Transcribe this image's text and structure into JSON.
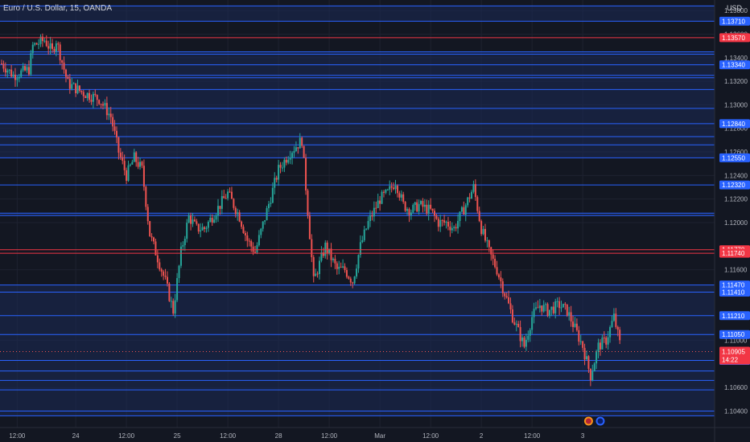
{
  "header": {
    "symbol_title": "Euro / U.S. Dollar, 15, OANDA",
    "currency": "USD"
  },
  "price_badge": {
    "time_left": "14:22"
  },
  "icons": [
    "flag-eu-icon",
    "flag-us-icon"
  ],
  "colors": {
    "background": "#131722",
    "level_blue": "#2962ff",
    "level_red": "#f23645",
    "candle_up": "#26a69a",
    "candle_down": "#ef5350",
    "axis_text": "#b2b5be"
  },
  "chart_data": {
    "type": "candlestick",
    "title": "Euro / U.S. Dollar, 15, OANDA",
    "ylim": [
      1.1026,
      1.1389
    ],
    "y_ticks": [
      "1.13800",
      "1.13600",
      "1.13400",
      "1.13200",
      "1.13000",
      "1.12800",
      "1.12600",
      "1.12400",
      "1.12200",
      "1.12000",
      "1.11600",
      "1.11000",
      "1.10600",
      "1.10400"
    ],
    "x_ticks": [
      {
        "label": "12:00",
        "x": 0.6
      },
      {
        "label": "24",
        "x": 2.1
      },
      {
        "label": "12:00",
        "x": 3.4
      },
      {
        "label": "25",
        "x": 4.7
      },
      {
        "label": "12:00",
        "x": 6.0
      },
      {
        "label": "28",
        "x": 7.3
      },
      {
        "label": "12:00",
        "x": 8.6
      },
      {
        "label": "Mar",
        "x": 9.9
      },
      {
        "label": "12:00",
        "x": 11.2
      },
      {
        "label": "2",
        "x": 12.5
      },
      {
        "label": "12:00",
        "x": 13.8
      },
      {
        "label": "3",
        "x": 15.1
      }
    ],
    "x_range": [
      0.2,
      16.5
    ],
    "blue_levels": [
      1.1384,
      1.1371,
      1.1345,
      1.1343,
      1.1334,
      1.1325,
      1.1323,
      1.1313,
      1.1297,
      1.1284,
      1.1273,
      1.1266,
      1.1255,
      1.1232,
      1.1208,
      1.1206,
      1.1147,
      1.1141,
      1.1121,
      1.1105,
      1.1083,
      1.1074,
      1.1066,
      1.1058,
      1.104,
      1.1036
    ],
    "red_levels": [
      1.1357,
      1.1177,
      1.1174
    ],
    "labeled_levels": [
      {
        "value": "1.13710",
        "color": "blue"
      },
      {
        "value": "1.13570",
        "color": "red"
      },
      {
        "value": "1.13340",
        "color": "blue"
      },
      {
        "value": "1.12840",
        "color": "blue"
      },
      {
        "value": "1.12550",
        "color": "blue"
      },
      {
        "value": "1.12320",
        "color": "blue"
      },
      {
        "value": "1.11770",
        "color": "red"
      },
      {
        "value": "1.11740",
        "color": "red"
      },
      {
        "value": "1.11470",
        "color": "blue"
      },
      {
        "value": "1.11410",
        "color": "blue"
      },
      {
        "value": "1.11210",
        "color": "blue"
      },
      {
        "value": "1.11050",
        "color": "blue"
      },
      {
        "value": "1.10830",
        "color": "blue"
      }
    ],
    "current_price": "1.10905",
    "current_value": 1.10905,
    "price_path": [
      [
        0.2,
        1.1335
      ],
      [
        0.5,
        1.1325
      ],
      [
        0.9,
        1.133
      ],
      [
        1.0,
        1.135
      ],
      [
        1.3,
        1.1355
      ],
      [
        1.5,
        1.1345
      ],
      [
        1.6,
        1.1355
      ],
      [
        1.9,
        1.1318
      ],
      [
        2.3,
        1.131
      ],
      [
        2.7,
        1.1305
      ],
      [
        3.0,
        1.129
      ],
      [
        3.2,
        1.126
      ],
      [
        3.4,
        1.124
      ],
      [
        3.6,
        1.1255
      ],
      [
        3.8,
        1.1245
      ],
      [
        4.0,
        1.119
      ],
      [
        4.2,
        1.117
      ],
      [
        4.4,
        1.115
      ],
      [
        4.6,
        1.1125
      ],
      [
        4.8,
        1.1175
      ],
      [
        5.0,
        1.1205
      ],
      [
        5.2,
        1.1195
      ],
      [
        5.4,
        1.1195
      ],
      [
        5.7,
        1.121
      ],
      [
        6.0,
        1.1225
      ],
      [
        6.3,
        1.1205
      ],
      [
        6.5,
        1.1185
      ],
      [
        6.7,
        1.1175
      ],
      [
        7.0,
        1.121
      ],
      [
        7.3,
        1.1245
      ],
      [
        7.6,
        1.126
      ],
      [
        7.9,
        1.127
      ],
      [
        8.2,
        1.115
      ],
      [
        8.5,
        1.118
      ],
      [
        8.8,
        1.116
      ],
      [
        9.0,
        1.116
      ],
      [
        9.2,
        1.115
      ],
      [
        9.4,
        1.118
      ],
      [
        9.6,
        1.12
      ],
      [
        9.9,
        1.122
      ],
      [
        10.1,
        1.1225
      ],
      [
        10.3,
        1.1235
      ],
      [
        10.5,
        1.1215
      ],
      [
        10.7,
        1.121
      ],
      [
        10.9,
        1.1215
      ],
      [
        11.2,
        1.121
      ],
      [
        11.4,
        1.12
      ],
      [
        11.6,
        1.12
      ],
      [
        11.8,
        1.1195
      ],
      [
        12.1,
        1.1215
      ],
      [
        12.3,
        1.123
      ],
      [
        12.5,
        1.1195
      ],
      [
        12.7,
        1.1175
      ],
      [
        12.9,
        1.116
      ],
      [
        13.1,
        1.114
      ],
      [
        13.3,
        1.112
      ],
      [
        13.6,
        1.1095
      ],
      [
        13.8,
        1.112
      ],
      [
        14.0,
        1.113
      ],
      [
        14.2,
        1.1125
      ],
      [
        14.5,
        1.113
      ],
      [
        14.7,
        1.1125
      ],
      [
        14.9,
        1.111
      ],
      [
        15.1,
        1.1095
      ],
      [
        15.3,
        1.107
      ],
      [
        15.5,
        1.1095
      ],
      [
        15.7,
        1.11
      ],
      [
        15.9,
        1.112
      ],
      [
        16.1,
        1.109
      ]
    ]
  }
}
